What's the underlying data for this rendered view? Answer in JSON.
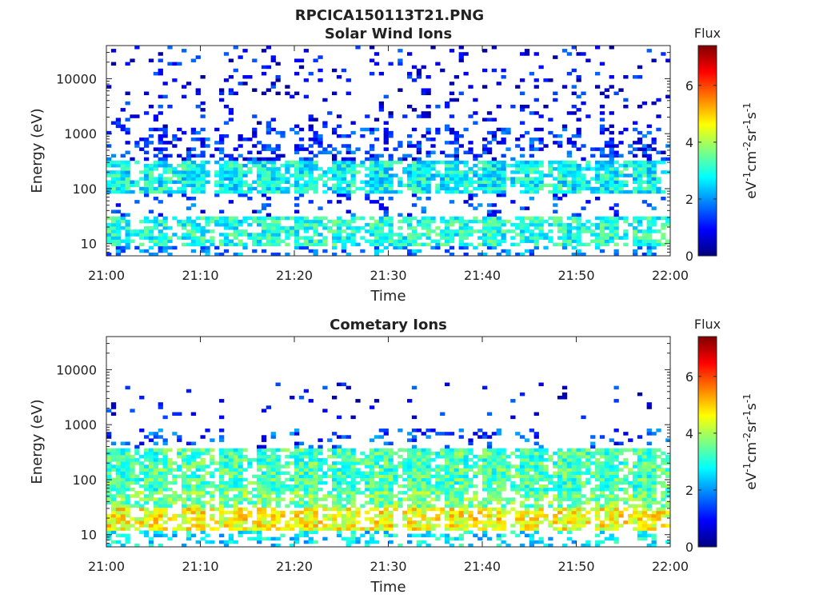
{
  "figure": {
    "title": "RPCICA150113T21.PNG"
  },
  "chart_data": [
    {
      "type": "heatmap",
      "title": "Solar Wind Ions",
      "xlabel": "Time",
      "ylabel": "Energy (eV)",
      "x_ticks": [
        "21:00",
        "21:10",
        "21:20",
        "21:30",
        "21:40",
        "21:50",
        "22:00"
      ],
      "xlim": [
        "21:00",
        "22:00"
      ],
      "y_scale": "log",
      "y_ticks": [
        "10",
        "100",
        "1000",
        "10000"
      ],
      "ylim": [
        6,
        40000
      ],
      "colorbar": {
        "label": "Flux",
        "unit_base": "eV",
        "unit_exp1": "-1",
        "unit_cm": "cm",
        "unit_exp2": "-2",
        "unit_sr": "sr",
        "unit_exp3": "-1",
        "unit_s": "s",
        "unit_exp4": "-1",
        "ticks": [
          "0",
          "2",
          "4",
          "6"
        ],
        "range": [
          0,
          7.4
        ],
        "colormap": "jet"
      },
      "bands": [
        {
          "emin": 9,
          "emax": 30,
          "level": 3.0,
          "fill": 0.8
        },
        {
          "emin": 6,
          "emax": 9,
          "level": 2.0,
          "fill": 0.35
        },
        {
          "emin": 30,
          "emax": 80,
          "level": 1.3,
          "fill": 0.15
        },
        {
          "emin": 80,
          "emax": 320,
          "level": 2.8,
          "fill": 0.92
        },
        {
          "emin": 320,
          "emax": 1200,
          "level": 1.2,
          "fill": 0.35
        },
        {
          "emin": 1200,
          "emax": 40000,
          "level": 0.9,
          "fill": 0.12
        }
      ]
    },
    {
      "type": "heatmap",
      "title": "Cometary Ions",
      "xlabel": "Time",
      "ylabel": "Energy (eV)",
      "x_ticks": [
        "21:00",
        "21:10",
        "21:20",
        "21:30",
        "21:40",
        "21:50",
        "22:00"
      ],
      "xlim": [
        "21:00",
        "22:00"
      ],
      "y_scale": "log",
      "y_ticks": [
        "10",
        "100",
        "1000",
        "10000"
      ],
      "ylim": [
        6,
        40000
      ],
      "colorbar": {
        "label": "Flux",
        "unit_base": "eV",
        "unit_exp1": "-1",
        "unit_cm": "cm",
        "unit_exp2": "-2",
        "unit_sr": "sr",
        "unit_exp3": "-1",
        "unit_s": "s",
        "unit_exp4": "-1",
        "ticks": [
          "0",
          "2",
          "4",
          "6"
        ],
        "range": [
          0,
          7.4
        ],
        "colormap": "jet"
      },
      "bands": [
        {
          "emin": 12,
          "emax": 30,
          "level": 4.6,
          "fill": 0.85
        },
        {
          "emin": 6,
          "emax": 12,
          "level": 2.6,
          "fill": 0.4
        },
        {
          "emin": 30,
          "emax": 60,
          "level": 3.6,
          "fill": 0.85
        },
        {
          "emin": 60,
          "emax": 350,
          "level": 3.3,
          "fill": 0.97
        },
        {
          "emin": 350,
          "emax": 800,
          "level": 1.4,
          "fill": 0.2
        },
        {
          "emin": 1200,
          "emax": 6000,
          "level": 0.9,
          "fill": 0.05
        }
      ]
    }
  ]
}
